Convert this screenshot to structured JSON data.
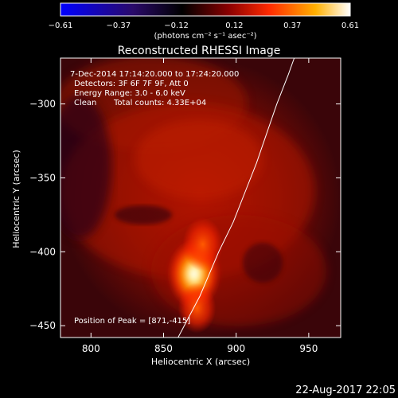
{
  "figure": {
    "title": "Reconstructed RHESSI Image",
    "timestamp": "22-Aug-2017 22:05"
  },
  "colorbar": {
    "ticks": [
      "-0.61",
      "-0.37",
      "-0.12",
      "0.12",
      "0.37",
      "0.61"
    ],
    "unit_label": "(photons cm⁻² s⁻¹ asec⁻²)",
    "range": [
      -0.61,
      0.61
    ],
    "colors": [
      "#0000ff",
      "#000000",
      "#ff0000",
      "#ffff00",
      "#ffffff"
    ]
  },
  "annotations": {
    "time_range": "7-Dec-2014 17:14:20.000 to 17:24:20.000",
    "detectors": "Detectors: 3F 6F 7F 9F, Att 0",
    "energy": "Energy Range: 3.0 - 6.0 keV",
    "clean_label": "Clean",
    "total_counts": "Total counts: 4.33E+04",
    "peak": "Position of Peak = [871,-415]"
  },
  "chart_data": {
    "type": "heatmap",
    "title": "Reconstructed RHESSI Image",
    "xlabel": "Heliocentric X (arcsec)",
    "ylabel": "Heliocentric Y (arcsec)",
    "xlim": [
      779,
      972
    ],
    "ylim": [
      -458,
      -269
    ],
    "xticks": [
      800,
      850,
      900,
      950
    ],
    "yticks": [
      -300,
      -350,
      -400,
      -450
    ],
    "peak": {
      "x": 871,
      "y": -415
    },
    "limb_curve": [
      [
        860,
        -458
      ],
      [
        875,
        -430
      ],
      [
        888,
        -400
      ],
      [
        898,
        -380
      ],
      [
        906,
        -360
      ],
      [
        914,
        -340
      ],
      [
        921,
        -320
      ],
      [
        928,
        -300
      ],
      [
        936,
        -280
      ],
      [
        940,
        -269
      ]
    ],
    "sources": [
      {
        "x": 871,
        "y": -415,
        "value": 0.61
      },
      {
        "x": 877,
        "y": -395,
        "value": 0.4
      },
      {
        "x": 873,
        "y": -438,
        "value": 0.36
      }
    ]
  }
}
